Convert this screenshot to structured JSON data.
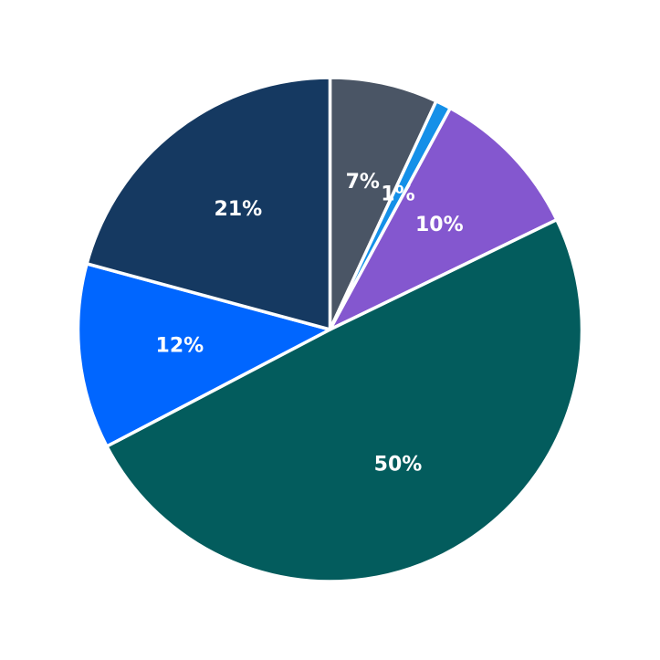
{
  "chart_data": {
    "type": "pie",
    "start": "12 o'clock",
    "direction": "clockwise",
    "slices": [
      {
        "label": "7%",
        "value": 7,
        "color": "#4a5565"
      },
      {
        "label": "1%",
        "value": 1,
        "color": "#1590e8"
      },
      {
        "label": "10%",
        "value": 10,
        "color": "#8457cf"
      },
      {
        "label": "50%",
        "value": 50,
        "color": "#035c5d"
      },
      {
        "label": "12%",
        "value": 12,
        "color": "#0066ff"
      },
      {
        "label": "21%",
        "value": 21,
        "color": "#153961"
      }
    ]
  }
}
